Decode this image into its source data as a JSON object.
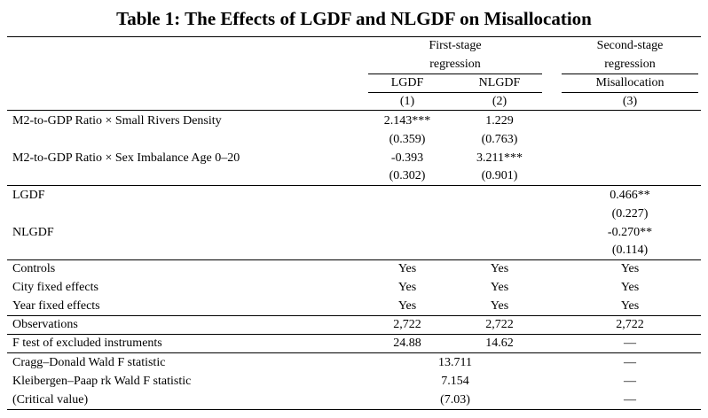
{
  "title": "Table 1: The Effects of LGDF and NLGDF on Misallocation",
  "headers": {
    "first_stage_line1": "First-stage",
    "first_stage_line2": "regression",
    "second_stage_line1": "Second-stage",
    "second_stage_line2": "regression",
    "col1": "LGDF",
    "col2": "NLGDF",
    "col3": "Misallocation",
    "num1": "(1)",
    "num2": "(2)",
    "num3": "(3)"
  },
  "rows": {
    "small_rivers": {
      "label": "M2-to-GDP Ratio × Small Rivers Density",
      "c1": "2.143***",
      "c1_se": "(0.359)",
      "c2": "1.229",
      "c2_se": "(0.763)"
    },
    "sex_imbalance": {
      "label": "M2-to-GDP Ratio × Sex Imbalance Age 0–20",
      "c1": "-0.393",
      "c1_se": "(0.302)",
      "c2": "3.211***",
      "c2_se": "(0.901)"
    },
    "lgdf": {
      "label": "LGDF",
      "c3": "0.466**",
      "c3_se": "(0.227)"
    },
    "nlgdf": {
      "label": "NLGDF",
      "c3": "-0.270**",
      "c3_se": "(0.114)"
    },
    "controls": {
      "label": "Controls",
      "c1": "Yes",
      "c2": "Yes",
      "c3": "Yes"
    },
    "city_fe": {
      "label": "City fixed effects",
      "c1": "Yes",
      "c2": "Yes",
      "c3": "Yes"
    },
    "year_fe": {
      "label": "Year fixed effects",
      "c1": "Yes",
      "c2": "Yes",
      "c3": "Yes"
    },
    "observations": {
      "label": "Observations",
      "c1": "2,722",
      "c2": "2,722",
      "c3": "2,722"
    },
    "f_test": {
      "label": "F test of excluded instruments",
      "c1": "24.88",
      "c2": "14.62",
      "c3": "—"
    },
    "cragg_donald": {
      "label": "Cragg–Donald Wald F statistic",
      "cm": "13.711",
      "c3": "—"
    },
    "kleibergen": {
      "label": "Kleibergen–Paap rk Wald F statistic",
      "cm": "7.154",
      "c3": "—"
    },
    "critical": {
      "label": "(Critical value)",
      "cm": "(7.03)",
      "c3": "—"
    }
  }
}
